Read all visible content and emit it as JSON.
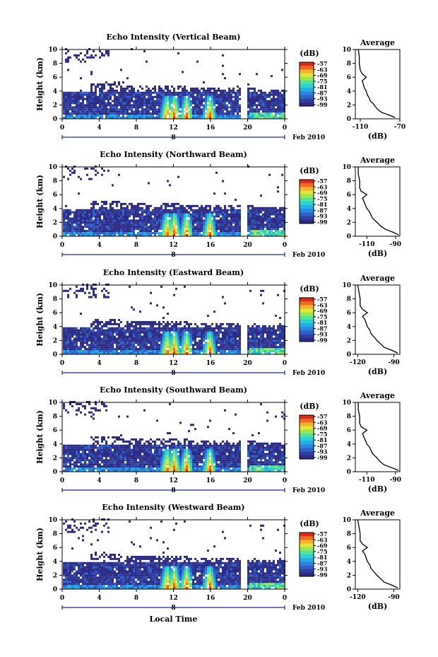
{
  "chart_data": [
    {
      "type": "heatmap",
      "title": "Echo Intensity (Vertical Beam)",
      "ylabel": "Height (km)",
      "xlim": [
        0,
        24
      ],
      "ylim": [
        0,
        10
      ],
      "xticks": [
        "0",
        "4",
        "8",
        "12",
        "16",
        "20",
        "0"
      ],
      "yticks": [
        "0",
        "2",
        "4",
        "6",
        "8",
        "10"
      ],
      "date_label": "8",
      "date_suffix": "Feb 2010",
      "colorbar": {
        "unit": "(dB)",
        "ticks": [
          "-57",
          "-63",
          "-69",
          "-75",
          "-81",
          "-87",
          "-93",
          "-99"
        ]
      },
      "profile": {
        "title": "Average",
        "xlabel": "(dB)",
        "xlim": [
          -115,
          -70
        ],
        "xticks": [
          "-110",
          "-70"
        ],
        "yticks": [
          "0",
          "2",
          "4",
          "6",
          "8",
          "10"
        ],
        "points": [
          [
            -75,
            0.2
          ],
          [
            -80,
            0.5
          ],
          [
            -88,
            0.9
          ],
          [
            -92,
            1.3
          ],
          [
            -95,
            1.8
          ],
          [
            -97,
            2.2
          ],
          [
            -100,
            2.6
          ],
          [
            -101,
            3.0
          ],
          [
            -103,
            3.5
          ],
          [
            -104,
            4.0
          ],
          [
            -106,
            4.5
          ],
          [
            -107,
            5.0
          ],
          [
            -108,
            5.5
          ],
          [
            -104,
            6.0
          ],
          [
            -108,
            6.5
          ],
          [
            -110,
            7.0
          ],
          [
            -111,
            8.0
          ],
          [
            -111,
            9.0
          ],
          [
            -112,
            10.0
          ]
        ]
      }
    },
    {
      "type": "heatmap",
      "title": "Echo Intensity (Northward Beam)",
      "ylabel": "Height (km)",
      "xlim": [
        0,
        24
      ],
      "ylim": [
        0,
        10
      ],
      "xticks": [
        "0",
        "4",
        "8",
        "12",
        "16",
        "20",
        "0"
      ],
      "yticks": [
        "0",
        "2",
        "4",
        "6",
        "8",
        "10"
      ],
      "date_label": "8",
      "date_suffix": "Feb 2010",
      "colorbar": {
        "unit": "(dB)",
        "ticks": [
          "-57",
          "-63",
          "-69",
          "-75",
          "-81",
          "-87",
          "-93",
          "-99"
        ]
      },
      "profile": {
        "title": "Average",
        "xlabel": "(dB)",
        "xlim": [
          -118,
          -87
        ],
        "xticks": [
          "-110",
          "-90"
        ],
        "yticks": [
          "0",
          "2",
          "4",
          "6",
          "8",
          "10"
        ],
        "points": [
          [
            -88,
            0.2
          ],
          [
            -92,
            0.6
          ],
          [
            -97,
            1.0
          ],
          [
            -100,
            1.4
          ],
          [
            -103,
            2.0
          ],
          [
            -106,
            2.6
          ],
          [
            -107,
            3.0
          ],
          [
            -108,
            3.5
          ],
          [
            -110,
            4.0
          ],
          [
            -111,
            4.5
          ],
          [
            -112,
            5.0
          ],
          [
            -113,
            5.5
          ],
          [
            -110,
            6.0
          ],
          [
            -114,
            6.5
          ],
          [
            -115,
            7.0
          ],
          [
            -115,
            8.0
          ],
          [
            -116,
            9.0
          ],
          [
            -116,
            10.0
          ]
        ]
      }
    },
    {
      "type": "heatmap",
      "title": "Echo Intensity (Eastward Beam)",
      "ylabel": "Height (km)",
      "xlim": [
        0,
        24
      ],
      "ylim": [
        0,
        10
      ],
      "xticks": [
        "0",
        "4",
        "8",
        "12",
        "16",
        "20",
        "0"
      ],
      "yticks": [
        "0",
        "2",
        "4",
        "6",
        "8",
        "10"
      ],
      "date_label": "8",
      "date_suffix": "Feb 2010",
      "colorbar": {
        "unit": "(dB)",
        "ticks": [
          "-57",
          "-63",
          "-69",
          "-75",
          "-81",
          "-87",
          "-93",
          "-99"
        ]
      },
      "profile": {
        "title": "Average",
        "xlabel": "(dB)",
        "xlim": [
          -122,
          -85
        ],
        "xticks": [
          "-120",
          "-90"
        ],
        "yticks": [
          "0",
          "2",
          "4",
          "6",
          "8",
          "10"
        ],
        "points": [
          [
            -87,
            0.2
          ],
          [
            -92,
            0.6
          ],
          [
            -98,
            1.0
          ],
          [
            -101,
            1.5
          ],
          [
            -104,
            2.0
          ],
          [
            -107,
            2.6
          ],
          [
            -109,
            3.0
          ],
          [
            -110,
            3.5
          ],
          [
            -112,
            4.0
          ],
          [
            -113,
            4.5
          ],
          [
            -114,
            5.0
          ],
          [
            -116,
            5.5
          ],
          [
            -112,
            6.0
          ],
          [
            -116,
            6.5
          ],
          [
            -118,
            7.0
          ],
          [
            -118,
            8.0
          ],
          [
            -119,
            9.0
          ],
          [
            -120,
            10.0
          ]
        ]
      }
    },
    {
      "type": "heatmap",
      "title": "Echo Intensity (Southward Beam)",
      "ylabel": "Height (km)",
      "xlim": [
        0,
        24
      ],
      "ylim": [
        0,
        10
      ],
      "xticks": [
        "0",
        "4",
        "8",
        "12",
        "16",
        "20",
        "0"
      ],
      "yticks": [
        "0",
        "2",
        "4",
        "6",
        "8",
        "10"
      ],
      "date_label": "8",
      "date_suffix": "Feb 2010",
      "colorbar": {
        "unit": "(dB)",
        "ticks": [
          "-57",
          "-63",
          "-69",
          "-75",
          "-81",
          "-87",
          "-93",
          "-99"
        ]
      },
      "profile": {
        "title": "Average",
        "xlabel": "(dB)",
        "xlim": [
          -118,
          -87
        ],
        "xticks": [
          "-110",
          "-90"
        ],
        "yticks": [
          "0",
          "2",
          "4",
          "6",
          "8",
          "10"
        ],
        "points": [
          [
            -88,
            0.2
          ],
          [
            -93,
            0.6
          ],
          [
            -98,
            1.0
          ],
          [
            -101,
            1.5
          ],
          [
            -103,
            2.0
          ],
          [
            -106,
            2.6
          ],
          [
            -107,
            3.0
          ],
          [
            -108,
            3.5
          ],
          [
            -110,
            4.0
          ],
          [
            -111,
            4.5
          ],
          [
            -112,
            5.0
          ],
          [
            -113,
            5.5
          ],
          [
            -110,
            6.0
          ],
          [
            -114,
            6.5
          ],
          [
            -115,
            7.0
          ],
          [
            -115,
            8.0
          ],
          [
            -116,
            9.0
          ],
          [
            -116,
            10.0
          ]
        ]
      }
    },
    {
      "type": "heatmap",
      "title": "Echo Intensity (Westward Beam)",
      "ylabel": "Height (km)",
      "xlabel": "Local Time",
      "xlim": [
        0,
        24
      ],
      "ylim": [
        0,
        10
      ],
      "xticks": [
        "0",
        "4",
        "8",
        "12",
        "16",
        "20",
        "0"
      ],
      "yticks": [
        "0",
        "2",
        "4",
        "6",
        "8",
        "10"
      ],
      "date_label": "8",
      "date_suffix": "Feb 2010",
      "colorbar": {
        "unit": "(dB)",
        "ticks": [
          "-57",
          "-63",
          "-69",
          "-75",
          "-81",
          "-87",
          "-93",
          "-99"
        ]
      },
      "profile": {
        "title": "Average",
        "xlabel": "(dB)",
        "xlim": [
          -122,
          -85
        ],
        "xticks": [
          "-120",
          "-90"
        ],
        "yticks": [
          "0",
          "2",
          "4",
          "6",
          "8",
          "10"
        ],
        "points": [
          [
            -87,
            0.2
          ],
          [
            -92,
            0.6
          ],
          [
            -98,
            1.0
          ],
          [
            -101,
            1.5
          ],
          [
            -104,
            2.0
          ],
          [
            -107,
            2.6
          ],
          [
            -109,
            3.0
          ],
          [
            -110,
            3.5
          ],
          [
            -112,
            4.0
          ],
          [
            -113,
            4.5
          ],
          [
            -114,
            5.0
          ],
          [
            -116,
            5.5
          ],
          [
            -112,
            6.0
          ],
          [
            -116,
            6.5
          ],
          [
            -118,
            7.0
          ],
          [
            -118,
            8.0
          ],
          [
            -119,
            9.0
          ],
          [
            -120,
            10.0
          ]
        ]
      }
    }
  ],
  "colors": {
    "colormap": [
      "#2c2a83",
      "#3040a0",
      "#2f62c8",
      "#2a86e0",
      "#24aee6",
      "#2bd2d4",
      "#4fe29c",
      "#9ae850",
      "#e4e43a",
      "#f5b12c",
      "#ef6a22",
      "#d92a1a"
    ],
    "background": "#ffffff",
    "axis": "#000000"
  }
}
